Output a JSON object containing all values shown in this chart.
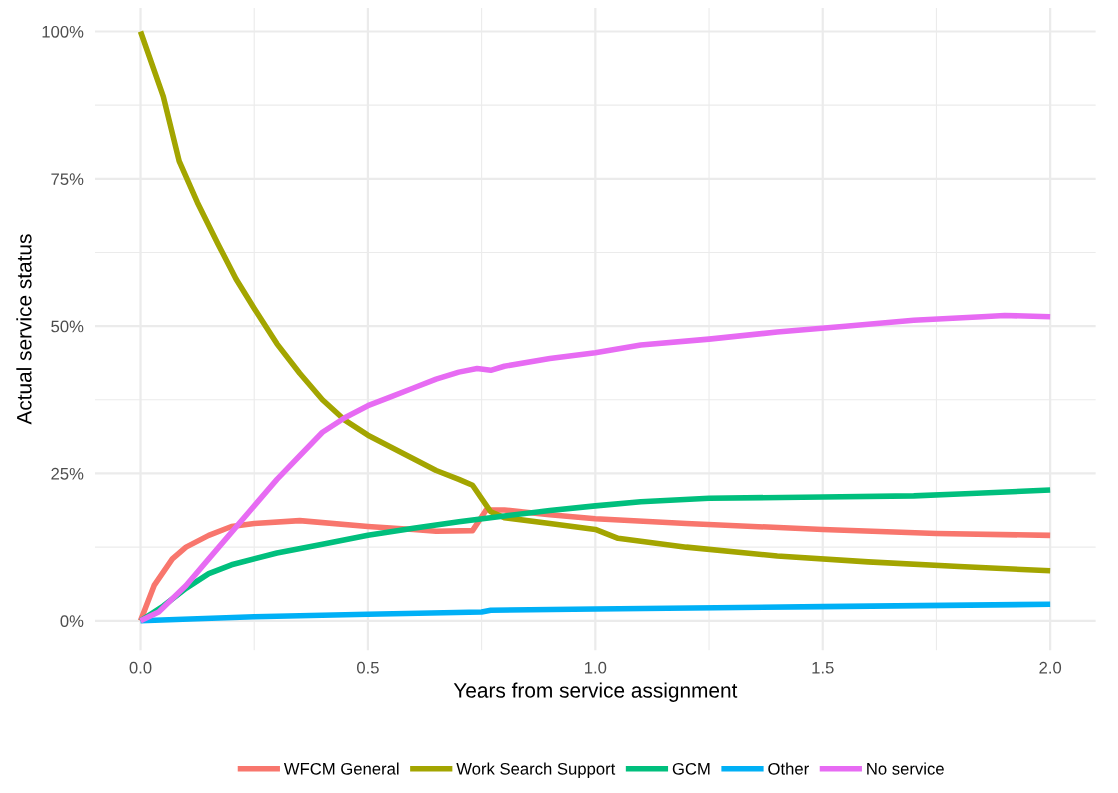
{
  "chart_data": {
    "type": "line",
    "xlabel": "Years from service assignment",
    "ylabel": "Actual service status",
    "xlim": [
      -0.1,
      2.1
    ],
    "xticks": [
      {
        "value": 0,
        "label": "0.0"
      },
      {
        "value": 0.5,
        "label": "0.5"
      },
      {
        "value": 1,
        "label": "1.0"
      },
      {
        "value": 1.5,
        "label": "1.5"
      },
      {
        "value": 2,
        "label": "2.0"
      }
    ],
    "ylim": [
      -5,
      104
    ],
    "yticks": [
      {
        "value": 0,
        "label": "0%"
      },
      {
        "value": 25,
        "label": "25%"
      },
      {
        "value": 50,
        "label": "50%"
      },
      {
        "value": 75,
        "label": "75%"
      },
      {
        "value": 100,
        "label": "100%"
      }
    ],
    "grid": true,
    "legend": "bottom",
    "line_style": "solid",
    "marker": "none",
    "series": [
      {
        "name": "WFCM General",
        "color": "#f8766d",
        "x": [
          0,
          0.03,
          0.07,
          0.1,
          0.15,
          0.2,
          0.25,
          0.35,
          0.5,
          0.6,
          0.65,
          0.73,
          0.76,
          0.8,
          0.9,
          1.0,
          1.2,
          1.5,
          1.75,
          2.0
        ],
        "values": [
          0,
          6,
          10.5,
          12.5,
          14.5,
          16,
          16.5,
          17,
          16,
          15.5,
          15.2,
          15.3,
          18.8,
          18.8,
          18,
          17.3,
          16.5,
          15.5,
          14.8,
          14.5
        ]
      },
      {
        "name": "Work Search Support",
        "color": "#a3a500",
        "x": [
          0,
          0.05,
          0.085,
          0.125,
          0.17,
          0.21,
          0.25,
          0.3,
          0.35,
          0.4,
          0.45,
          0.5,
          0.55,
          0.6,
          0.65,
          0.7,
          0.73,
          0.77,
          0.8,
          0.9,
          1.0,
          1.05,
          1.2,
          1.4,
          1.6,
          1.8,
          2.0
        ],
        "values": [
          100,
          89,
          78,
          71,
          64,
          58,
          53,
          47,
          42,
          37.5,
          34,
          31.5,
          29.5,
          27.5,
          25.5,
          24,
          23,
          18.5,
          17.5,
          16.5,
          15.5,
          14,
          12.5,
          11,
          10,
          9.2,
          8.5
        ]
      },
      {
        "name": "GCM",
        "color": "#00bf7d",
        "x": [
          0,
          0.05,
          0.1,
          0.15,
          0.2,
          0.3,
          0.4,
          0.5,
          0.6,
          0.7,
          0.8,
          0.9,
          1.0,
          1.1,
          1.25,
          1.5,
          1.7,
          1.8,
          2.0
        ],
        "values": [
          0,
          2.5,
          5.5,
          8,
          9.5,
          11.5,
          13,
          14.5,
          15.7,
          16.8,
          17.8,
          18.7,
          19.5,
          20.2,
          20.8,
          21,
          21.2,
          21.5,
          22.2
        ]
      },
      {
        "name": "Other",
        "color": "#00b0f6",
        "x": [
          0,
          0.25,
          0.5,
          0.75,
          0.77,
          1.0,
          1.5,
          2.0
        ],
        "values": [
          0,
          0.7,
          1.1,
          1.5,
          1.8,
          2,
          2.4,
          2.8
        ]
      },
      {
        "name": "No service",
        "color": "#e76bf3",
        "x": [
          0,
          0.04,
          0.1,
          0.15,
          0.2,
          0.25,
          0.3,
          0.35,
          0.4,
          0.45,
          0.5,
          0.55,
          0.6,
          0.65,
          0.7,
          0.74,
          0.77,
          0.8,
          0.9,
          1.0,
          1.1,
          1.25,
          1.4,
          1.55,
          1.7,
          1.85,
          1.9,
          2.0
        ],
        "values": [
          0,
          1.5,
          6,
          10.5,
          15,
          19.5,
          24,
          28,
          32,
          34.5,
          36.5,
          38,
          39.5,
          41,
          42.2,
          42.8,
          42.5,
          43.2,
          44.5,
          45.5,
          46.8,
          47.8,
          49,
          50,
          51,
          51.6,
          51.8,
          51.6
        ]
      }
    ]
  }
}
